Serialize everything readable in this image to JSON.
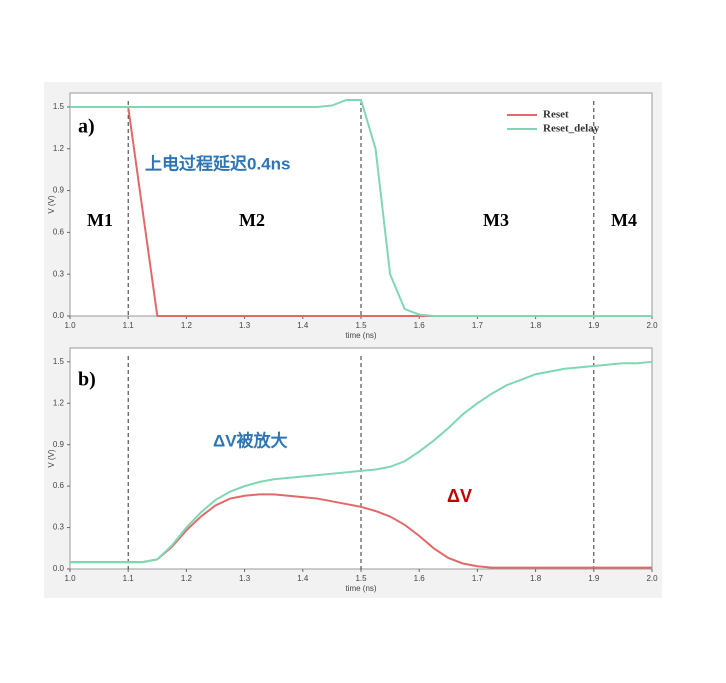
{
  "chart_data": [
    {
      "type": "line",
      "panel_label": "a)",
      "xlabel": "time (ns)",
      "ylabel": "V (V)",
      "xlim": [
        1,
        2
      ],
      "ylim": [
        0,
        1.6
      ],
      "xticks": [
        {
          "value": 1,
          "label": "1.0"
        },
        1.1,
        1.2,
        1.3,
        1.4,
        1.5,
        1.6,
        1.7,
        1.8,
        1.9,
        {
          "value": 2,
          "label": "2.0"
        }
      ],
      "yticks": [
        {
          "value": 0,
          "label": "0.0"
        },
        0.3,
        0.6,
        0.9,
        1.2,
        1.5
      ],
      "vlines": [
        1.1,
        1.5,
        1.9
      ],
      "legend": "upper right",
      "regions": [
        "M1",
        "M2",
        "M3",
        "M4"
      ],
      "notes": [
        "上电过程延迟0.4ns"
      ],
      "x": [
        1,
        1.025,
        1.05,
        1.075,
        1.1,
        1.125,
        1.15,
        1.175,
        1.2,
        1.225,
        1.25,
        1.275,
        1.3,
        1.325,
        1.35,
        1.375,
        1.4,
        1.425,
        1.45,
        1.475,
        1.5,
        1.525,
        1.55,
        1.575,
        1.6,
        1.625,
        1.65,
        1.675,
        1.7,
        1.725,
        1.75,
        1.775,
        1.8,
        1.825,
        1.85,
        1.875,
        1.9,
        1.925,
        1.95,
        1.975,
        2
      ],
      "series": [
        {
          "name": "Reset",
          "color": "#e06a6a",
          "values": [
            1.5,
            1.5,
            1.5,
            1.5,
            1.5,
            0.75,
            0,
            0,
            0,
            0,
            0,
            0,
            0,
            0,
            0,
            0,
            0,
            0,
            0,
            0,
            0,
            0,
            0,
            0,
            0,
            0,
            0,
            0,
            0,
            0,
            0,
            0,
            0,
            0,
            0,
            0,
            0,
            0,
            0,
            0,
            0
          ]
        },
        {
          "name": "Reset_delay",
          "color": "#7fd8b2",
          "values": [
            1.5,
            1.5,
            1.5,
            1.5,
            1.5,
            1.5,
            1.5,
            1.5,
            1.5,
            1.5,
            1.5,
            1.5,
            1.5,
            1.5,
            1.5,
            1.5,
            1.5,
            1.5,
            1.51,
            1.55,
            1.55,
            1.2,
            0.3,
            0.05,
            0.01,
            0,
            0,
            0,
            0,
            0,
            0,
            0,
            0,
            0,
            0,
            0,
            0,
            0,
            0,
            0,
            0
          ]
        }
      ]
    },
    {
      "type": "line",
      "panel_label": "b)",
      "xlabel": "time (ns)",
      "ylabel": "V (V)",
      "xlim": [
        1,
        2
      ],
      "ylim": [
        0,
        1.6
      ],
      "xticks": [
        {
          "value": 1,
          "label": "1.0"
        },
        1.1,
        1.2,
        1.3,
        1.4,
        1.5,
        1.6,
        1.7,
        1.8,
        1.9,
        {
          "value": 2,
          "label": "2.0"
        }
      ],
      "yticks": [
        {
          "value": 0,
          "label": "0.0"
        },
        0.3,
        0.6,
        0.9,
        1.2,
        1.5
      ],
      "vlines": [
        1.1,
        1.5,
        1.9
      ],
      "legend": "none",
      "notes": [
        "ΔV被放大",
        "ΔV"
      ],
      "x": [
        1,
        1.025,
        1.05,
        1.075,
        1.1,
        1.125,
        1.15,
        1.175,
        1.2,
        1.225,
        1.25,
        1.275,
        1.3,
        1.325,
        1.35,
        1.375,
        1.4,
        1.425,
        1.45,
        1.475,
        1.5,
        1.525,
        1.55,
        1.575,
        1.6,
        1.625,
        1.65,
        1.675,
        1.7,
        1.725,
        1.75,
        1.775,
        1.8,
        1.825,
        1.85,
        1.875,
        1.9,
        1.925,
        1.95,
        1.975,
        2
      ],
      "series": [
        {
          "color": "#e06a6a",
          "values": [
            0.05,
            0.05,
            0.05,
            0.05,
            0.05,
            0.05,
            0.07,
            0.16,
            0.28,
            0.38,
            0.46,
            0.51,
            0.53,
            0.54,
            0.54,
            0.53,
            0.52,
            0.51,
            0.49,
            0.47,
            0.45,
            0.42,
            0.38,
            0.32,
            0.24,
            0.15,
            0.08,
            0.04,
            0.02,
            0.01,
            0.01,
            0.01,
            0.01,
            0.01,
            0.01,
            0.01,
            0.01,
            0.01,
            0.01,
            0.01,
            0.01
          ]
        },
        {
          "color": "#7fd8b2",
          "values": [
            0.05,
            0.05,
            0.05,
            0.05,
            0.05,
            0.05,
            0.07,
            0.17,
            0.3,
            0.41,
            0.5,
            0.56,
            0.6,
            0.63,
            0.65,
            0.66,
            0.67,
            0.68,
            0.69,
            0.7,
            0.71,
            0.72,
            0.74,
            0.78,
            0.85,
            0.93,
            1.02,
            1.12,
            1.2,
            1.27,
            1.33,
            1.37,
            1.41,
            1.43,
            1.45,
            1.46,
            1.47,
            1.48,
            1.49,
            1.49,
            1.5
          ]
        }
      ]
    }
  ]
}
